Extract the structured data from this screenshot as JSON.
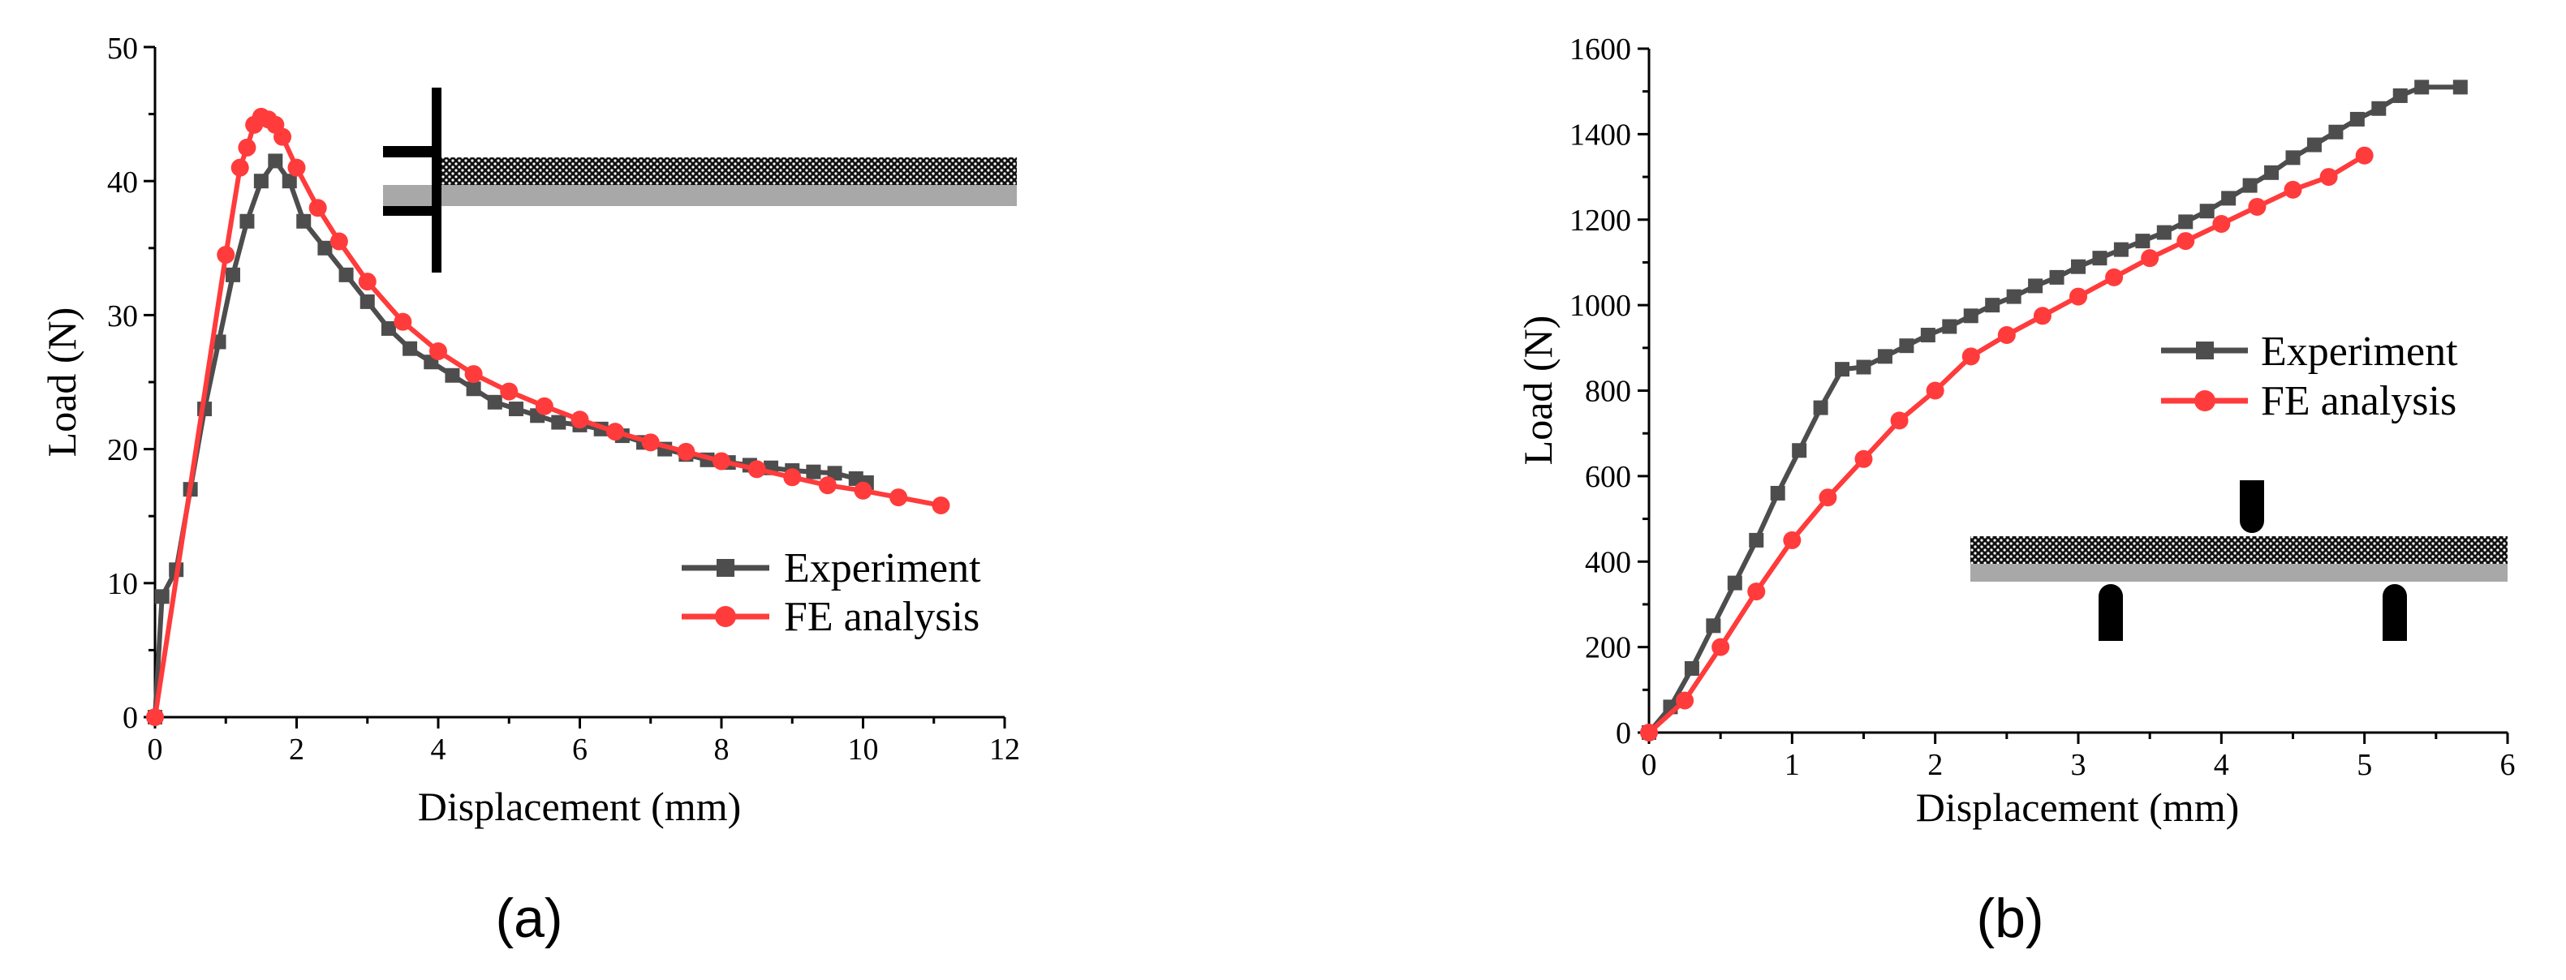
{
  "chart_data": [
    {
      "type": "line",
      "panel_label": "(a)",
      "xlabel": "Displacement (mm)",
      "ylabel": "Load (N)",
      "xlim": [
        0,
        12
      ],
      "ylim": [
        0,
        50
      ],
      "xticks": [
        "0",
        "2",
        "4",
        "6",
        "8",
        "10",
        "12"
      ],
      "yticks": [
        "0",
        "10",
        "20",
        "30",
        "40",
        "50"
      ],
      "legend_position": "bottom-right",
      "series": [
        {
          "name": "Experiment",
          "color": "#4d4d4d",
          "marker": "square",
          "points": [
            [
              0,
              0
            ],
            [
              0.1,
              9
            ],
            [
              0.3,
              11
            ],
            [
              0.5,
              17
            ],
            [
              0.7,
              23
            ],
            [
              0.9,
              28
            ],
            [
              1.1,
              33
            ],
            [
              1.3,
              37
            ],
            [
              1.5,
              40
            ],
            [
              1.7,
              41.5
            ],
            [
              1.9,
              40
            ],
            [
              2.1,
              37
            ],
            [
              2.4,
              35
            ],
            [
              2.7,
              33
            ],
            [
              3.0,
              31
            ],
            [
              3.3,
              29
            ],
            [
              3.6,
              27.5
            ],
            [
              3.9,
              26.5
            ],
            [
              4.2,
              25.5
            ],
            [
              4.5,
              24.5
            ],
            [
              4.8,
              23.5
            ],
            [
              5.1,
              23
            ],
            [
              5.4,
              22.5
            ],
            [
              5.7,
              22
            ],
            [
              6.0,
              21.8
            ],
            [
              6.3,
              21.5
            ],
            [
              6.6,
              21
            ],
            [
              6.9,
              20.5
            ],
            [
              7.2,
              20
            ],
            [
              7.5,
              19.6
            ],
            [
              7.8,
              19.2
            ],
            [
              8.1,
              19
            ],
            [
              8.4,
              18.8
            ],
            [
              8.7,
              18.6
            ],
            [
              9.0,
              18.4
            ],
            [
              9.3,
              18.3
            ],
            [
              9.6,
              18.2
            ],
            [
              9.9,
              17.8
            ],
            [
              10.05,
              17.5
            ]
          ]
        },
        {
          "name": "FE analysis",
          "color": "#ff3b3b",
          "marker": "circle",
          "points": [
            [
              0,
              0
            ],
            [
              1.0,
              34.5
            ],
            [
              1.2,
              41
            ],
            [
              1.3,
              42.5
            ],
            [
              1.4,
              44.2
            ],
            [
              1.5,
              44.8
            ],
            [
              1.6,
              44.6
            ],
            [
              1.7,
              44.2
            ],
            [
              1.8,
              43.3
            ],
            [
              2.0,
              41
            ],
            [
              2.3,
              38
            ],
            [
              2.6,
              35.5
            ],
            [
              3.0,
              32.5
            ],
            [
              3.5,
              29.5
            ],
            [
              4.0,
              27.3
            ],
            [
              4.5,
              25.6
            ],
            [
              5.0,
              24.3
            ],
            [
              5.5,
              23.2
            ],
            [
              6.0,
              22.2
            ],
            [
              6.5,
              21.3
            ],
            [
              7.0,
              20.5
            ],
            [
              7.5,
              19.8
            ],
            [
              8.0,
              19.1
            ],
            [
              8.5,
              18.5
            ],
            [
              9.0,
              17.9
            ],
            [
              9.5,
              17.3
            ],
            [
              10.0,
              16.9
            ],
            [
              10.5,
              16.4
            ],
            [
              11.1,
              15.8
            ]
          ]
        }
      ]
    },
    {
      "type": "line",
      "panel_label": "(b)",
      "xlabel": "Displacement (mm)",
      "ylabel": "Load (N)",
      "xlim": [
        0,
        6
      ],
      "ylim": [
        0,
        1600
      ],
      "xticks": [
        "0",
        "1",
        "2",
        "3",
        "4",
        "5",
        "6"
      ],
      "yticks": [
        "0",
        "200",
        "400",
        "600",
        "800",
        "1000",
        "1200",
        "1400",
        "1600"
      ],
      "legend_position": "right",
      "series": [
        {
          "name": "Experiment",
          "color": "#4d4d4d",
          "marker": "square",
          "points": [
            [
              0,
              0
            ],
            [
              0.15,
              60
            ],
            [
              0.3,
              150
            ],
            [
              0.45,
              250
            ],
            [
              0.6,
              350
            ],
            [
              0.75,
              450
            ],
            [
              0.9,
              560
            ],
            [
              1.05,
              660
            ],
            [
              1.2,
              760
            ],
            [
              1.35,
              850
            ],
            [
              1.5,
              855
            ],
            [
              1.65,
              880
            ],
            [
              1.8,
              905
            ],
            [
              1.95,
              930
            ],
            [
              2.1,
              950
            ],
            [
              2.25,
              975
            ],
            [
              2.4,
              1000
            ],
            [
              2.55,
              1020
            ],
            [
              2.7,
              1045
            ],
            [
              2.85,
              1065
            ],
            [
              3.0,
              1090
            ],
            [
              3.15,
              1110
            ],
            [
              3.3,
              1130
            ],
            [
              3.45,
              1150
            ],
            [
              3.6,
              1170
            ],
            [
              3.75,
              1195
            ],
            [
              3.9,
              1220
            ],
            [
              4.05,
              1250
            ],
            [
              4.2,
              1280
            ],
            [
              4.35,
              1310
            ],
            [
              4.5,
              1345
            ],
            [
              4.65,
              1375
            ],
            [
              4.8,
              1405
            ],
            [
              4.95,
              1435
            ],
            [
              5.1,
              1460
            ],
            [
              5.25,
              1490
            ],
            [
              5.4,
              1510
            ],
            [
              5.67,
              1510
            ]
          ]
        },
        {
          "name": "FE analysis",
          "color": "#ff3b3b",
          "marker": "circle",
          "points": [
            [
              0,
              0
            ],
            [
              0.25,
              75
            ],
            [
              0.5,
              200
            ],
            [
              0.75,
              330
            ],
            [
              1.0,
              450
            ],
            [
              1.25,
              550
            ],
            [
              1.5,
              640
            ],
            [
              1.75,
              730
            ],
            [
              2.0,
              800
            ],
            [
              2.25,
              880
            ],
            [
              2.5,
              930
            ],
            [
              2.75,
              975
            ],
            [
              3.0,
              1020
            ],
            [
              3.25,
              1065
            ],
            [
              3.5,
              1110
            ],
            [
              3.75,
              1150
            ],
            [
              4.0,
              1190
            ],
            [
              4.25,
              1230
            ],
            [
              4.5,
              1270
            ],
            [
              4.75,
              1300
            ],
            [
              5.0,
              1350
            ]
          ]
        }
      ]
    }
  ]
}
